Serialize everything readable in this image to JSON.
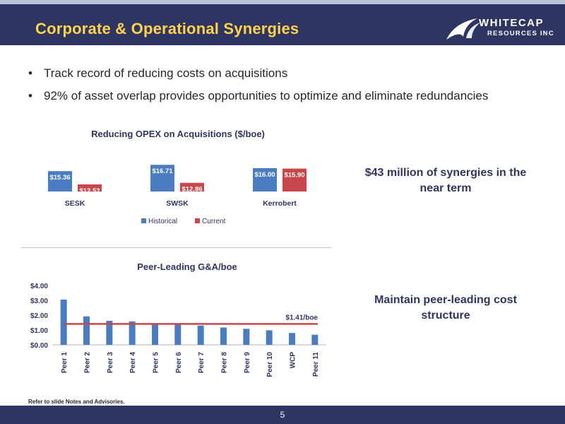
{
  "header": {
    "title": "Corporate & Operational Synergies"
  },
  "logo": {
    "main": "WHITECAP",
    "sub": "RESOURCES INC"
  },
  "bullets": [
    "Track record of reducing costs on acquisitions",
    "92% of asset overlap provides opportunities to optimize and eliminate redundancies"
  ],
  "callouts": {
    "synergies": "$43 million of synergies in the near term",
    "cost_structure": "Maintain peer-leading cost structure"
  },
  "footnote": "Refer to slide Notes and Advisories.",
  "page_number": "5",
  "colors": {
    "header_bg": "#2e3561",
    "title": "#ffd34d",
    "historical": "#4a7cc2",
    "current": "#c9464a",
    "peer_bar": "#4a7cc2",
    "avg_line": "#c9464a"
  },
  "chart_data": [
    {
      "type": "bar",
      "title": "Reducing OPEX on Acquisitions ($/boe)",
      "categories": [
        "SESK",
        "SWSK",
        "Kerrobert"
      ],
      "series": [
        {
          "name": "Historical",
          "values": [
            15.36,
            16.71,
            16.0
          ],
          "labels": [
            "$15.36",
            "$16.71",
            "$16.00"
          ]
        },
        {
          "name": "Current",
          "values": [
            12.52,
            12.86,
            15.9
          ],
          "labels": [
            "$12.52",
            "$12.86",
            "$15.90"
          ]
        }
      ],
      "axis_visible": false,
      "legend": "bottom"
    },
    {
      "type": "bar",
      "title": "Peer-Leading G&A/boe",
      "categories": [
        "Peer 1",
        "Peer 2",
        "Peer 3",
        "Peer 4",
        "Peer 5",
        "Peer 6",
        "Peer 7",
        "Peer 8",
        "Peer 9",
        "Peer 10",
        "WCP",
        "Peer 11"
      ],
      "values": [
        3.05,
        1.92,
        1.62,
        1.58,
        1.41,
        1.4,
        1.3,
        1.17,
        1.08,
        0.98,
        0.8,
        0.68
      ],
      "reference_line": {
        "value": 1.41,
        "label": "$1.41/boe"
      },
      "y_ticks": [
        "$0.00",
        "$1.00",
        "$2.00",
        "$3.00",
        "$4.00"
      ],
      "ylim": [
        0,
        4
      ]
    }
  ]
}
